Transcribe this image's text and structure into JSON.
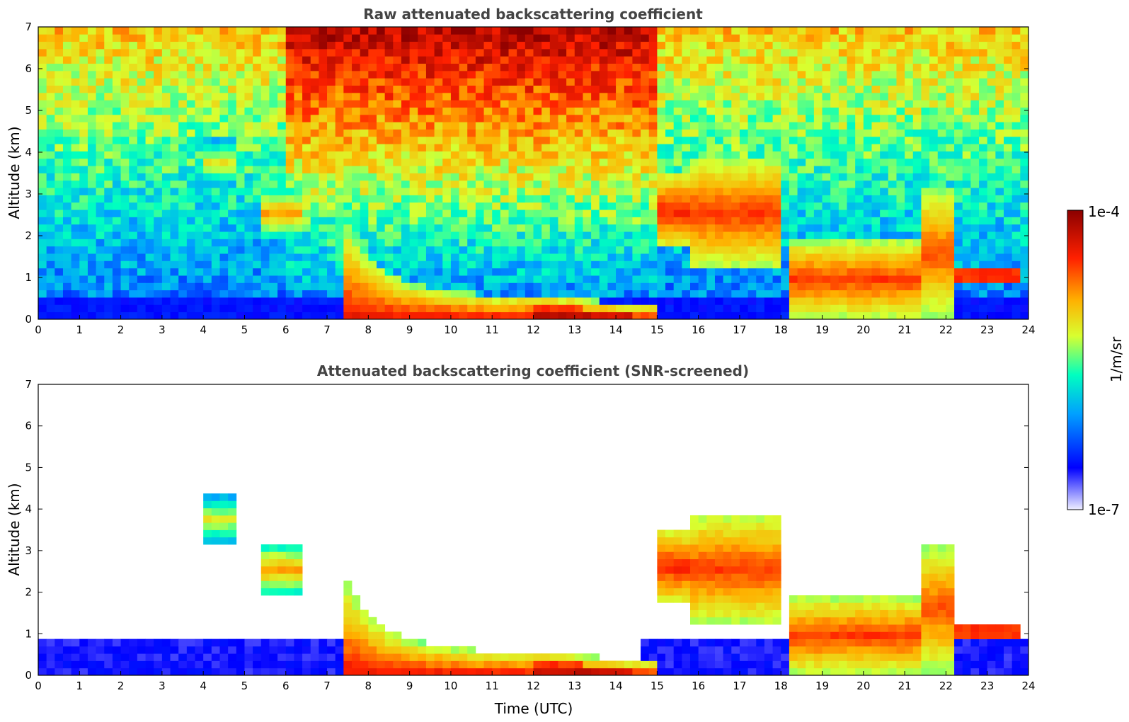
{
  "chart_data": [
    {
      "type": "heatmap",
      "title": "Raw attenuated backscattering coefficient",
      "xlabel": "",
      "ylabel": "Altitude (km)",
      "xlim": [
        0,
        24
      ],
      "ylim": [
        0,
        7
      ],
      "xticks": [
        "0",
        "1",
        "2",
        "3",
        "4",
        "5",
        "6",
        "7",
        "8",
        "9",
        "10",
        "11",
        "12",
        "13",
        "14",
        "15",
        "16",
        "17",
        "18",
        "19",
        "20",
        "21",
        "22",
        "23",
        "24"
      ],
      "yticks": [
        "0",
        "1",
        "2",
        "3",
        "4",
        "5",
        "6",
        "7"
      ],
      "screened": false
    },
    {
      "type": "heatmap",
      "title": "Attenuated backscattering coefficient (SNR-screened)",
      "xlabel": "Time (UTC)",
      "ylabel": "Altitude (km)",
      "xlim": [
        0,
        24
      ],
      "ylim": [
        0,
        7
      ],
      "xticks": [
        "0",
        "1",
        "2",
        "3",
        "4",
        "5",
        "6",
        "7",
        "8",
        "9",
        "10",
        "11",
        "12",
        "13",
        "14",
        "15",
        "16",
        "17",
        "18",
        "19",
        "20",
        "21",
        "22",
        "23",
        "24"
      ],
      "yticks": [
        "0",
        "1",
        "2",
        "3",
        "4",
        "5",
        "6",
        "7"
      ],
      "screened": true
    }
  ],
  "colorbar": {
    "label": "1/m/sr",
    "max_label": "1e-4",
    "min_label": "1e-7",
    "colormap": "jet",
    "colors": [
      "#eeeeff",
      "#0000ff",
      "#00b0ff",
      "#00ffc0",
      "#e0ff30",
      "#ffb000",
      "#ff2000",
      "#8b0000"
    ]
  },
  "features": [
    {
      "t0": 4.0,
      "t1": 4.7,
      "base": 3.2,
      "top": 4.3,
      "level": 0.62
    },
    {
      "t0": 5.4,
      "t1": 6.4,
      "base": 2.0,
      "top": 3.1,
      "level": 0.72
    },
    {
      "t0": 15.0,
      "t1": 15.8,
      "base": 1.7,
      "top": 3.5,
      "level": 0.85
    },
    {
      "t0": 15.8,
      "t1": 18.0,
      "base": 1.2,
      "top": 3.9,
      "level": 0.82
    },
    {
      "t0": 22.1,
      "t1": 23.8,
      "base": 0.8,
      "top": 1.3,
      "level": 0.92
    },
    {
      "t0": 18.2,
      "t1": 21.3,
      "base": 0.0,
      "top": 1.9,
      "level": 0.82
    },
    {
      "t0": 21.5,
      "t1": 22.2,
      "base": 0.0,
      "top": 3.2,
      "level": 0.8
    }
  ],
  "boundary_layer": [
    {
      "t": 7.5,
      "top": 2.2
    },
    {
      "t": 8.0,
      "top": 1.5
    },
    {
      "t": 8.5,
      "top": 1.1
    },
    {
      "t": 9.0,
      "top": 0.85
    },
    {
      "t": 10.0,
      "top": 0.7
    },
    {
      "t": 11.0,
      "top": 0.55
    },
    {
      "t": 12.0,
      "top": 0.6
    },
    {
      "t": 13.0,
      "top": 0.55
    },
    {
      "t": 14.0,
      "top": 0.35
    },
    {
      "t": 15.0,
      "top": 0.35
    }
  ]
}
